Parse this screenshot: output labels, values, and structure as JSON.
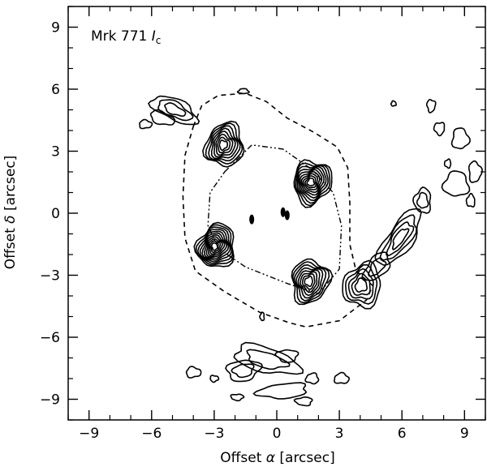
{
  "chart_data": {
    "type": "contour",
    "title": "Mrk 771",
    "title_symbol": "I",
    "title_subscript": "c",
    "xlabel_prefix": "Offset ",
    "xlabel_symbol": "α",
    "xlabel_suffix": " [arcsec]",
    "ylabel_prefix": "Offset ",
    "ylabel_symbol": "δ",
    "ylabel_suffix": " [arcsec]",
    "xlim": [
      -10,
      10
    ],
    "ylim": [
      -10,
      10
    ],
    "x_ticks": [
      -9,
      -6,
      -3,
      0,
      3,
      6,
      9
    ],
    "y_ticks": [
      -9,
      -6,
      -3,
      0,
      3,
      6,
      9
    ],
    "x_tick_labels": [
      "−9",
      "−6",
      "−3",
      "0",
      "3",
      "6",
      "9"
    ],
    "y_tick_labels": [
      "−9",
      "−6",
      "−3",
      "0",
      "3",
      "6",
      "9"
    ],
    "minor_tick_step": 1,
    "grid": false,
    "knots": [
      {
        "x": -2.5,
        "y": 3.3,
        "levels": 8
      },
      {
        "x": 1.7,
        "y": 1.5,
        "levels": 10
      },
      {
        "x": -2.9,
        "y": -1.6,
        "levels": 11
      },
      {
        "x": 1.6,
        "y": -3.3,
        "levels": 8
      },
      {
        "x": 4.1,
        "y": -3.5,
        "levels": 5
      }
    ],
    "center_marks": [
      {
        "x": -1.2,
        "y": -0.3
      },
      {
        "x": 0.3,
        "y": 0.05
      },
      {
        "x": 0.5,
        "y": -0.1
      }
    ],
    "dashed_outline": [
      [
        -4.0,
        4.2
      ],
      [
        -3.6,
        5.2
      ],
      [
        -2.8,
        5.7
      ],
      [
        -1.5,
        5.8
      ],
      [
        -0.5,
        5.4
      ],
      [
        0.5,
        4.6
      ],
      [
        1.8,
        3.9
      ],
      [
        2.9,
        3.2
      ],
      [
        3.4,
        2.2
      ],
      [
        3.5,
        0.5
      ],
      [
        3.5,
        -1.5
      ],
      [
        3.8,
        -2.8
      ],
      [
        4.6,
        -3.5
      ],
      [
        4.3,
        -4.2
      ],
      [
        3.0,
        -5.2
      ],
      [
        1.4,
        -5.5
      ],
      [
        0.6,
        -5.3
      ],
      [
        -0.8,
        -4.8
      ],
      [
        -2.5,
        -3.8
      ],
      [
        -3.9,
        -2.8
      ],
      [
        -4.4,
        -1.2
      ],
      [
        -4.5,
        0.8
      ],
      [
        -4.4,
        2.8
      ],
      [
        -4.0,
        4.2
      ]
    ],
    "dashdot_outline": [
      [
        -2.5,
        2.0
      ],
      [
        -1.2,
        3.3
      ],
      [
        0.3,
        3.1
      ],
      [
        1.7,
        2.1
      ],
      [
        2.7,
        1.0
      ],
      [
        3.1,
        -0.6
      ],
      [
        3.0,
        -2.7
      ],
      [
        2.0,
        -3.9
      ],
      [
        0.5,
        -3.4
      ],
      [
        -1.5,
        -2.6
      ],
      [
        -2.8,
        -1.7
      ],
      [
        -3.3,
        -0.6
      ],
      [
        -3.2,
        1.0
      ],
      [
        -2.5,
        2.0
      ]
    ],
    "blobs": [
      {
        "x": -4.9,
        "y": 5.0,
        "rx": 1.2,
        "ry": 0.5,
        "rot": -25,
        "levels": 3
      },
      {
        "x": -6.3,
        "y": 4.3,
        "rx": 0.3,
        "ry": 0.2,
        "rot": 0,
        "levels": 1
      },
      {
        "x": -5.5,
        "y": 4.6,
        "rx": 0.6,
        "ry": 0.3,
        "rot": -20,
        "levels": 1
      },
      {
        "x": 5.9,
        "y": -1.2,
        "rx": 1.6,
        "ry": 0.6,
        "rot": 55,
        "levels": 4
      },
      {
        "x": 4.8,
        "y": -2.6,
        "rx": 0.8,
        "ry": 0.45,
        "rot": 50,
        "levels": 2
      },
      {
        "x": 7.0,
        "y": 0.6,
        "rx": 0.4,
        "ry": 0.6,
        "rot": 0,
        "levels": 2
      },
      {
        "x": 8.6,
        "y": 1.4,
        "rx": 0.6,
        "ry": 0.6,
        "rot": 0,
        "levels": 1
      },
      {
        "x": 8.8,
        "y": 3.6,
        "rx": 0.4,
        "ry": 0.5,
        "rot": 0,
        "levels": 1
      },
      {
        "x": 9.5,
        "y": 2.0,
        "rx": 0.3,
        "ry": 0.5,
        "rot": 0,
        "levels": 1
      },
      {
        "x": 7.4,
        "y": 5.2,
        "rx": 0.2,
        "ry": 0.3,
        "rot": 0,
        "levels": 1
      },
      {
        "x": 7.8,
        "y": 4.1,
        "rx": 0.25,
        "ry": 0.3,
        "rot": 0,
        "levels": 1
      },
      {
        "x": 8.2,
        "y": 2.4,
        "rx": 0.15,
        "ry": 0.2,
        "rot": 0,
        "levels": 1
      },
      {
        "x": 9.3,
        "y": 0.6,
        "rx": 0.2,
        "ry": 0.3,
        "rot": 0,
        "levels": 1
      },
      {
        "x": 5.6,
        "y": 5.3,
        "rx": 0.12,
        "ry": 0.12,
        "rot": 0,
        "levels": 1
      },
      {
        "x": -0.5,
        "y": -7.1,
        "rx": 1.6,
        "ry": 0.6,
        "rot": -15,
        "levels": 2
      },
      {
        "x": -1.6,
        "y": -7.6,
        "rx": 0.8,
        "ry": 0.5,
        "rot": 10,
        "levels": 2
      },
      {
        "x": 0.5,
        "y": -6.9,
        "rx": 0.5,
        "ry": 0.3,
        "rot": 0,
        "levels": 1
      },
      {
        "x": 0.3,
        "y": -8.6,
        "rx": 1.2,
        "ry": 0.35,
        "rot": 5,
        "levels": 1
      },
      {
        "x": 1.7,
        "y": -8.0,
        "rx": 0.3,
        "ry": 0.25,
        "rot": 0,
        "levels": 1
      },
      {
        "x": 3.1,
        "y": -8.0,
        "rx": 0.35,
        "ry": 0.25,
        "rot": 0,
        "levels": 1
      },
      {
        "x": -4.0,
        "y": -7.7,
        "rx": 0.35,
        "ry": 0.25,
        "rot": 0,
        "levels": 1
      },
      {
        "x": -3.0,
        "y": -8.0,
        "rx": 0.2,
        "ry": 0.15,
        "rot": 0,
        "levels": 1
      },
      {
        "x": -1.9,
        "y": -8.9,
        "rx": 0.3,
        "ry": 0.15,
        "rot": 0,
        "levels": 1
      },
      {
        "x": 1.3,
        "y": -9.1,
        "rx": 0.4,
        "ry": 0.2,
        "rot": 0,
        "levels": 1
      },
      {
        "x": -0.7,
        "y": -5.0,
        "rx": 0.1,
        "ry": 0.2,
        "rot": 0,
        "levels": 1
      },
      {
        "x": -1.6,
        "y": 5.9,
        "rx": 0.25,
        "ry": 0.12,
        "rot": 0,
        "levels": 1
      }
    ]
  }
}
